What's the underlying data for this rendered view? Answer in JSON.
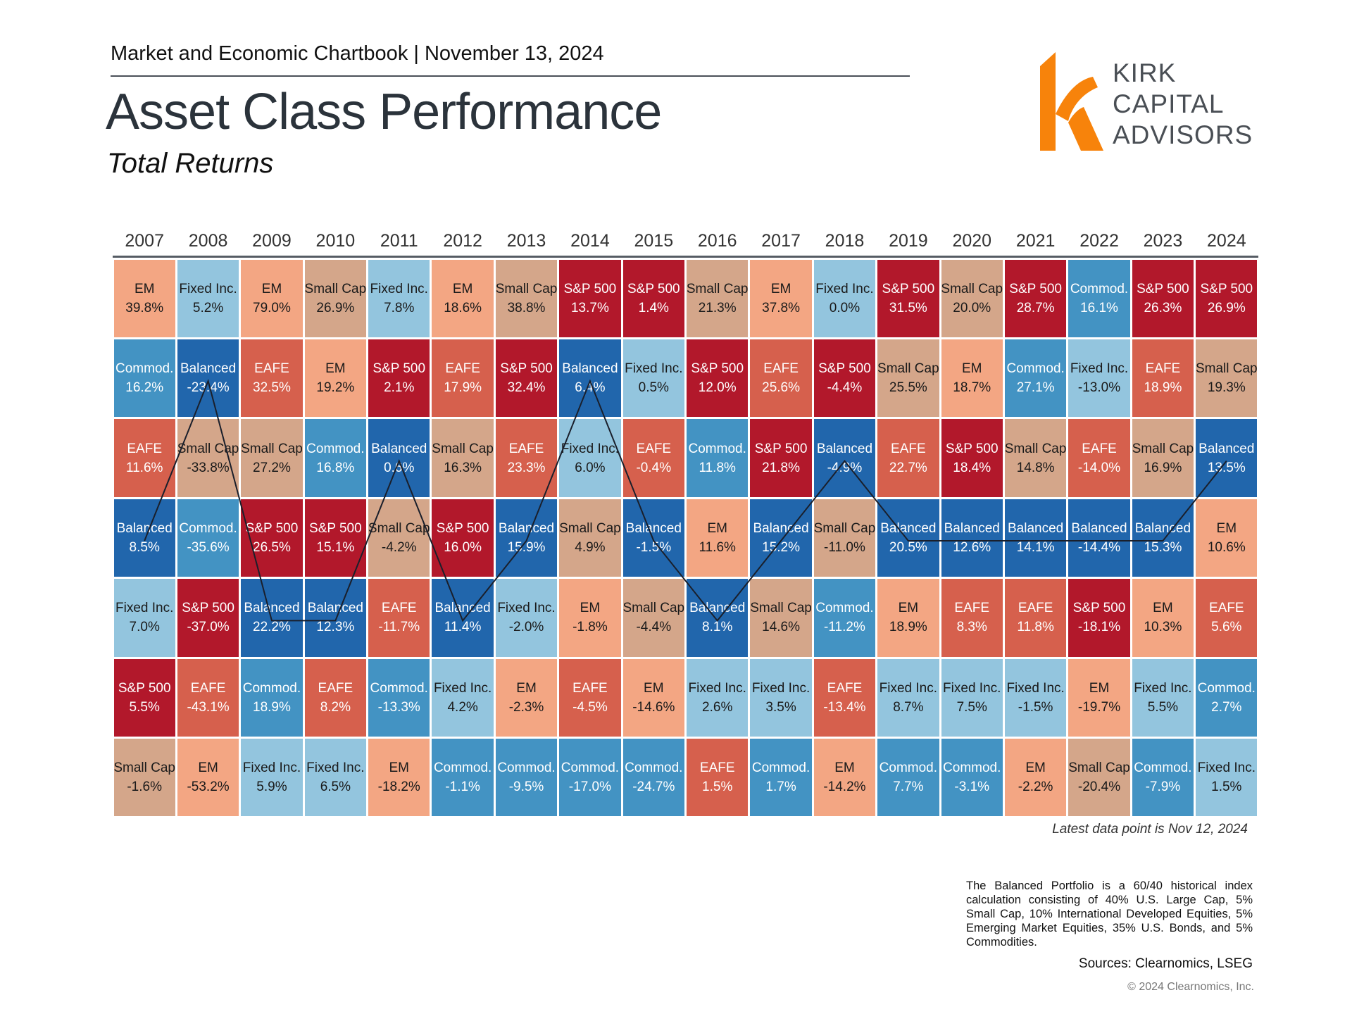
{
  "header": {
    "top_line": "Market and Economic Chartbook | November 13, 2024",
    "title": "Asset Class Performance",
    "subtitle": "Total Returns",
    "logo_text": [
      "KIRK",
      "CAPITAL",
      "ADVISORS"
    ]
  },
  "colors": {
    "EM": "#f3a683",
    "Fixed Inc.": "#93c5de",
    "Small Cap": "#d4a68a",
    "S&P 500": "#b2182b",
    "Commod.": "#4393c3",
    "Balanced": "#2166ac",
    "EAFE": "#d6604d",
    "accent_logo": "#f7830b"
  },
  "chart_data": {
    "type": "table",
    "title": "Asset Class Performance",
    "subtitle": "Total Returns",
    "highlight_series": "Balanced",
    "years": [
      "2007",
      "2008",
      "2009",
      "2010",
      "2011",
      "2012",
      "2013",
      "2014",
      "2015",
      "2016",
      "2017",
      "2018",
      "2019",
      "2020",
      "2021",
      "2022",
      "2023",
      "2024"
    ],
    "columns": [
      [
        [
          "EM",
          "39.8%"
        ],
        [
          "Commod.",
          "16.2%"
        ],
        [
          "EAFE",
          "11.6%"
        ],
        [
          "Balanced",
          "8.5%"
        ],
        [
          "Fixed Inc.",
          "7.0%"
        ],
        [
          "S&P 500",
          "5.5%"
        ],
        [
          "Small Cap",
          "-1.6%"
        ]
      ],
      [
        [
          "Fixed Inc.",
          "5.2%"
        ],
        [
          "Balanced",
          "-23.4%"
        ],
        [
          "Small Cap",
          "-33.8%"
        ],
        [
          "Commod.",
          "-35.6%"
        ],
        [
          "S&P 500",
          "-37.0%"
        ],
        [
          "EAFE",
          "-43.1%"
        ],
        [
          "EM",
          "-53.2%"
        ]
      ],
      [
        [
          "EM",
          "79.0%"
        ],
        [
          "EAFE",
          "32.5%"
        ],
        [
          "Small Cap",
          "27.2%"
        ],
        [
          "S&P 500",
          "26.5%"
        ],
        [
          "Balanced",
          "22.2%"
        ],
        [
          "Commod.",
          "18.9%"
        ],
        [
          "Fixed Inc.",
          "5.9%"
        ]
      ],
      [
        [
          "Small Cap",
          "26.9%"
        ],
        [
          "EM",
          "19.2%"
        ],
        [
          "Commod.",
          "16.8%"
        ],
        [
          "S&P 500",
          "15.1%"
        ],
        [
          "Balanced",
          "12.3%"
        ],
        [
          "EAFE",
          "8.2%"
        ],
        [
          "Fixed Inc.",
          "6.5%"
        ]
      ],
      [
        [
          "Fixed Inc.",
          "7.8%"
        ],
        [
          "S&P 500",
          "2.1%"
        ],
        [
          "Balanced",
          "0.6%"
        ],
        [
          "Small Cap",
          "-4.2%"
        ],
        [
          "EAFE",
          "-11.7%"
        ],
        [
          "Commod.",
          "-13.3%"
        ],
        [
          "EM",
          "-18.2%"
        ]
      ],
      [
        [
          "EM",
          "18.6%"
        ],
        [
          "EAFE",
          "17.9%"
        ],
        [
          "Small Cap",
          "16.3%"
        ],
        [
          "S&P 500",
          "16.0%"
        ],
        [
          "Balanced",
          "11.4%"
        ],
        [
          "Fixed Inc.",
          "4.2%"
        ],
        [
          "Commod.",
          "-1.1%"
        ]
      ],
      [
        [
          "Small Cap",
          "38.8%"
        ],
        [
          "S&P 500",
          "32.4%"
        ],
        [
          "EAFE",
          "23.3%"
        ],
        [
          "Balanced",
          "15.9%"
        ],
        [
          "Fixed Inc.",
          "-2.0%"
        ],
        [
          "EM",
          "-2.3%"
        ],
        [
          "Commod.",
          "-9.5%"
        ]
      ],
      [
        [
          "S&P 500",
          "13.7%"
        ],
        [
          "Balanced",
          "6.4%"
        ],
        [
          "Fixed Inc.",
          "6.0%"
        ],
        [
          "Small Cap",
          "4.9%"
        ],
        [
          "EM",
          "-1.8%"
        ],
        [
          "EAFE",
          "-4.5%"
        ],
        [
          "Commod.",
          "-17.0%"
        ]
      ],
      [
        [
          "S&P 500",
          "1.4%"
        ],
        [
          "Fixed Inc.",
          "0.5%"
        ],
        [
          "EAFE",
          "-0.4%"
        ],
        [
          "Balanced",
          "-1.5%"
        ],
        [
          "Small Cap",
          "-4.4%"
        ],
        [
          "EM",
          "-14.6%"
        ],
        [
          "Commod.",
          "-24.7%"
        ]
      ],
      [
        [
          "Small Cap",
          "21.3%"
        ],
        [
          "S&P 500",
          "12.0%"
        ],
        [
          "Commod.",
          "11.8%"
        ],
        [
          "EM",
          "11.6%"
        ],
        [
          "Balanced",
          "8.1%"
        ],
        [
          "Fixed Inc.",
          "2.6%"
        ],
        [
          "EAFE",
          "1.5%"
        ]
      ],
      [
        [
          "EM",
          "37.8%"
        ],
        [
          "EAFE",
          "25.6%"
        ],
        [
          "S&P 500",
          "21.8%"
        ],
        [
          "Balanced",
          "15.2%"
        ],
        [
          "Small Cap",
          "14.6%"
        ],
        [
          "Fixed Inc.",
          "3.5%"
        ],
        [
          "Commod.",
          "1.7%"
        ]
      ],
      [
        [
          "Fixed Inc.",
          "0.0%"
        ],
        [
          "S&P 500",
          "-4.4%"
        ],
        [
          "Balanced",
          "-4.9%"
        ],
        [
          "Small Cap",
          "-11.0%"
        ],
        [
          "Commod.",
          "-11.2%"
        ],
        [
          "EAFE",
          "-13.4%"
        ],
        [
          "EM",
          "-14.2%"
        ]
      ],
      [
        [
          "S&P 500",
          "31.5%"
        ],
        [
          "Small Cap",
          "25.5%"
        ],
        [
          "EAFE",
          "22.7%"
        ],
        [
          "Balanced",
          "20.5%"
        ],
        [
          "EM",
          "18.9%"
        ],
        [
          "Fixed Inc.",
          "8.7%"
        ],
        [
          "Commod.",
          "7.7%"
        ]
      ],
      [
        [
          "Small Cap",
          "20.0%"
        ],
        [
          "EM",
          "18.7%"
        ],
        [
          "S&P 500",
          "18.4%"
        ],
        [
          "Balanced",
          "12.6%"
        ],
        [
          "EAFE",
          "8.3%"
        ],
        [
          "Fixed Inc.",
          "7.5%"
        ],
        [
          "Commod.",
          "-3.1%"
        ]
      ],
      [
        [
          "S&P 500",
          "28.7%"
        ],
        [
          "Commod.",
          "27.1%"
        ],
        [
          "Small Cap",
          "14.8%"
        ],
        [
          "Balanced",
          "14.1%"
        ],
        [
          "EAFE",
          "11.8%"
        ],
        [
          "Fixed Inc.",
          "-1.5%"
        ],
        [
          "EM",
          "-2.2%"
        ]
      ],
      [
        [
          "Commod.",
          "16.1%"
        ],
        [
          "Fixed Inc.",
          "-13.0%"
        ],
        [
          "EAFE",
          "-14.0%"
        ],
        [
          "Balanced",
          "-14.4%"
        ],
        [
          "S&P 500",
          "-18.1%"
        ],
        [
          "EM",
          "-19.7%"
        ],
        [
          "Small Cap",
          "-20.4%"
        ]
      ],
      [
        [
          "S&P 500",
          "26.3%"
        ],
        [
          "EAFE",
          "18.9%"
        ],
        [
          "Small Cap",
          "16.9%"
        ],
        [
          "Balanced",
          "15.3%"
        ],
        [
          "EM",
          "10.3%"
        ],
        [
          "Fixed Inc.",
          "5.5%"
        ],
        [
          "Commod.",
          "-7.9%"
        ]
      ],
      [
        [
          "S&P 500",
          "26.9%"
        ],
        [
          "Small Cap",
          "19.3%"
        ],
        [
          "Balanced",
          "13.5%"
        ],
        [
          "EM",
          "10.6%"
        ],
        [
          "EAFE",
          "5.6%"
        ],
        [
          "Commod.",
          "2.7%"
        ],
        [
          "Fixed Inc.",
          "1.5%"
        ]
      ]
    ]
  },
  "footer": {
    "latest": "Latest data point is Nov 12, 2024",
    "note": "The Balanced Portfolio is a 60/40 historical index calculation consisting of 40% U.S. Large Cap, 5% Small Cap, 10% International Developed Equities, 5% Emerging Market Equities, 35% U.S. Bonds, and 5% Commodities.",
    "sources": "Sources: Clearnomics, LSEG",
    "copyright": "© 2024 Clearnomics, Inc."
  }
}
